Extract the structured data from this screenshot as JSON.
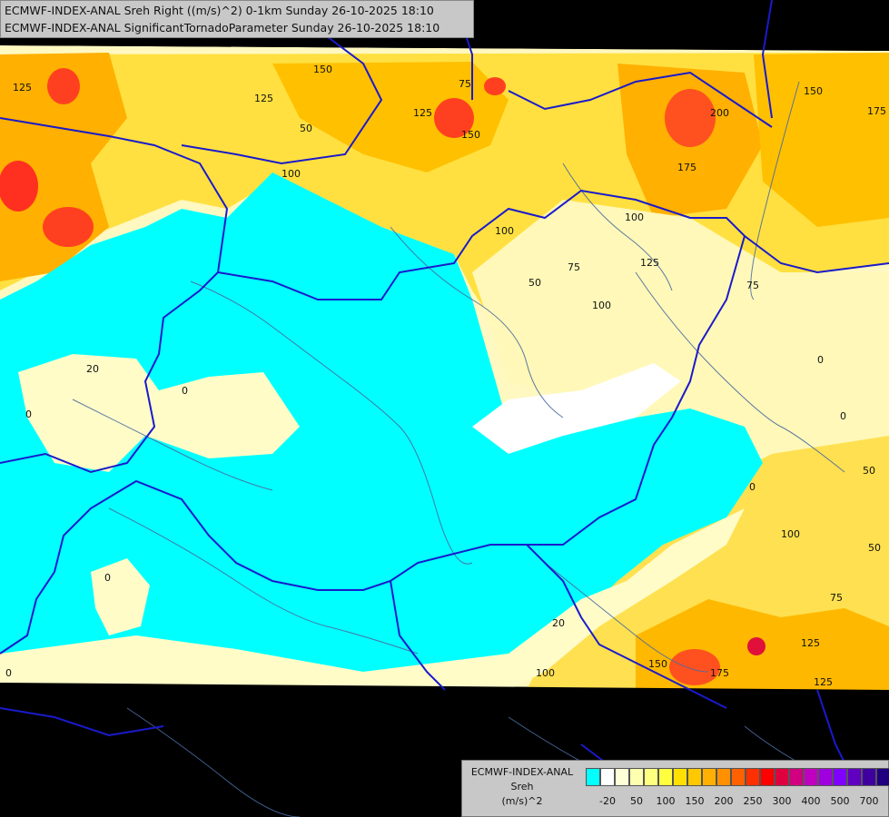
{
  "header": {
    "line1": "ECMWF-INDEX-ANAL Sreh Right ((m/s)^2) 0-1km Sunday 26-10-2025 18:10",
    "line2": "ECMWF-INDEX-ANAL SignificantTornadoParameter Sunday 26-10-2025 18:10"
  },
  "legend": {
    "model": "ECMWF-INDEX-ANAL",
    "variable": "Sreh",
    "unit": "(m/s)^2",
    "colors": [
      "#00ffff",
      "#ffffff",
      "#ffffd8",
      "#ffffb0",
      "#ffff80",
      "#ffff40",
      "#ffe000",
      "#ffc800",
      "#ffb000",
      "#ff9000",
      "#ff6000",
      "#ff3000",
      "#ff0000",
      "#e00040",
      "#d00080",
      "#c000c0",
      "#a000e0",
      "#8000ff",
      "#6000c0",
      "#4000a0",
      "#200080"
    ],
    "ticks": [
      "-20",
      "50",
      "100",
      "150",
      "200",
      "250",
      "300",
      "400",
      "500",
      "700"
    ]
  },
  "contour_labels": [
    "125",
    "150",
    "75",
    "50",
    "125",
    "125",
    "150",
    "100",
    "200",
    "175",
    "150",
    "175",
    "100",
    "75",
    "100",
    "125",
    "75",
    "50",
    "100",
    "0",
    "0",
    "20",
    "0",
    "0",
    "50",
    "0",
    "100",
    "50",
    "75",
    "125",
    "125",
    "150",
    "175",
    "100",
    "20",
    "0",
    "0"
  ],
  "colors": {
    "background": "#000000",
    "cyan": "#00ffff",
    "pale": "#ffffc8",
    "yellow": "#ffe84a",
    "orange": "#ffb000",
    "red": "#ff4020",
    "border": "#1a1acc",
    "river": "#4a6aa0"
  }
}
